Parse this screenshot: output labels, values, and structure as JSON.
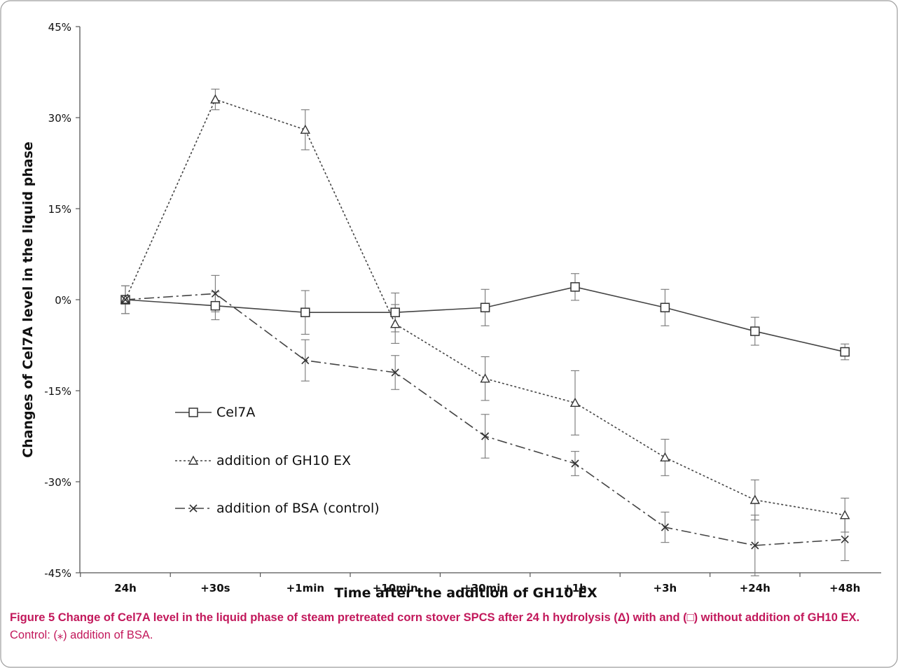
{
  "chart_data": {
    "type": "line",
    "xlabel": "Time after the addition  of GH10 EX",
    "ylabel": "Changes of Cel7A level in the liquid phase",
    "categories": [
      "24h",
      "+30s",
      "+1min",
      "+10min",
      "+30min",
      "+1h",
      "+3h",
      "+24h",
      "+48h"
    ],
    "y_ticks": [
      "45%",
      "30%",
      "15%",
      "0%",
      "-15%",
      "-30%",
      "-45%"
    ],
    "y_tick_values": [
      45,
      30,
      15,
      0,
      -15,
      -30,
      -45
    ],
    "ylim": [
      -45,
      45
    ],
    "grid": false,
    "legend_position": "lower-left",
    "series": [
      {
        "name": "Cel7A",
        "marker": "square",
        "line_style": "solid",
        "values": [
          0,
          -1,
          -2.1,
          -2.1,
          -1.3,
          2.1,
          -1.3,
          -5.2,
          -8.6
        ],
        "error": [
          2.3,
          2.3,
          3.6,
          3.2,
          3.0,
          2.2,
          3.0,
          2.3,
          1.3
        ]
      },
      {
        "name": "addition of GH10 EX",
        "marker": "triangle",
        "line_style": "dotted",
        "values": [
          0,
          33,
          28,
          -4,
          -13,
          -17,
          -26,
          -33,
          -35.5
        ],
        "error": [
          2.3,
          1.7,
          3.3,
          3.2,
          3.6,
          5.3,
          3.0,
          3.3,
          2.8
        ]
      },
      {
        "name": "addition of BSA (control)",
        "marker": "x",
        "line_style": "dashdot",
        "values": [
          0,
          1,
          -10,
          -12,
          -22.5,
          -27,
          -37.5,
          -40.5,
          -39.5
        ],
        "error": [
          2.3,
          3.0,
          3.4,
          2.8,
          3.6,
          2.0,
          2.5,
          5.0,
          3.5
        ]
      }
    ]
  },
  "caption": {
    "bold": "Figure 5 Change of Cel7A level in the liquid phase of steam pretreated corn stover SPCS after 24 h hydrolysis (Δ) with and (□) without addition of GH10 EX.",
    "rest": " Control: (⁎) addition of BSA."
  }
}
